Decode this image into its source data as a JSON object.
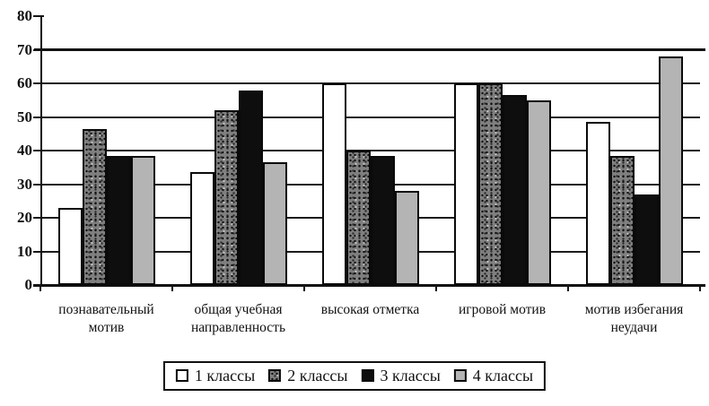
{
  "figure": {
    "title": "",
    "background": "#ffffff"
  },
  "colors": {
    "axis": "#151515",
    "gridline": "#1c1c1c",
    "series1_fill": "#ffffff",
    "series2_fill": "#7f7f7f",
    "series3_fill": "#0e0e0e",
    "series4_fill": "#b4b4b4",
    "bar_border": "#0a0a0a"
  },
  "chart_data": {
    "type": "bar",
    "title": "",
    "xlabel": "",
    "ylabel": "",
    "ylim": [
      0,
      80
    ],
    "yticks": [
      0,
      10,
      20,
      30,
      40,
      50,
      60,
      70,
      80
    ],
    "emphasized_gridline": 70,
    "grid": true,
    "legend_position": "bottom",
    "categories": [
      [
        "познавательный",
        "мотив"
      ],
      [
        "общая учебная",
        "направленность"
      ],
      [
        "высокая отметка"
      ],
      [
        "игровой мотив"
      ],
      [
        "мотив избегания",
        "неудачи"
      ]
    ],
    "series": [
      {
        "name": "1 классы",
        "fill": "white",
        "values": [
          23,
          33.5,
          60,
          60,
          48.5
        ]
      },
      {
        "name": "2 классы",
        "fill": "speckled-gray",
        "values": [
          46.5,
          52,
          40,
          60,
          38.5
        ]
      },
      {
        "name": "3 классы",
        "fill": "black",
        "values": [
          38.5,
          58,
          38.5,
          56.5,
          27
        ]
      },
      {
        "name": "4 классы",
        "fill": "light-gray",
        "values": [
          38.5,
          36.5,
          28,
          55,
          68
        ]
      }
    ]
  }
}
